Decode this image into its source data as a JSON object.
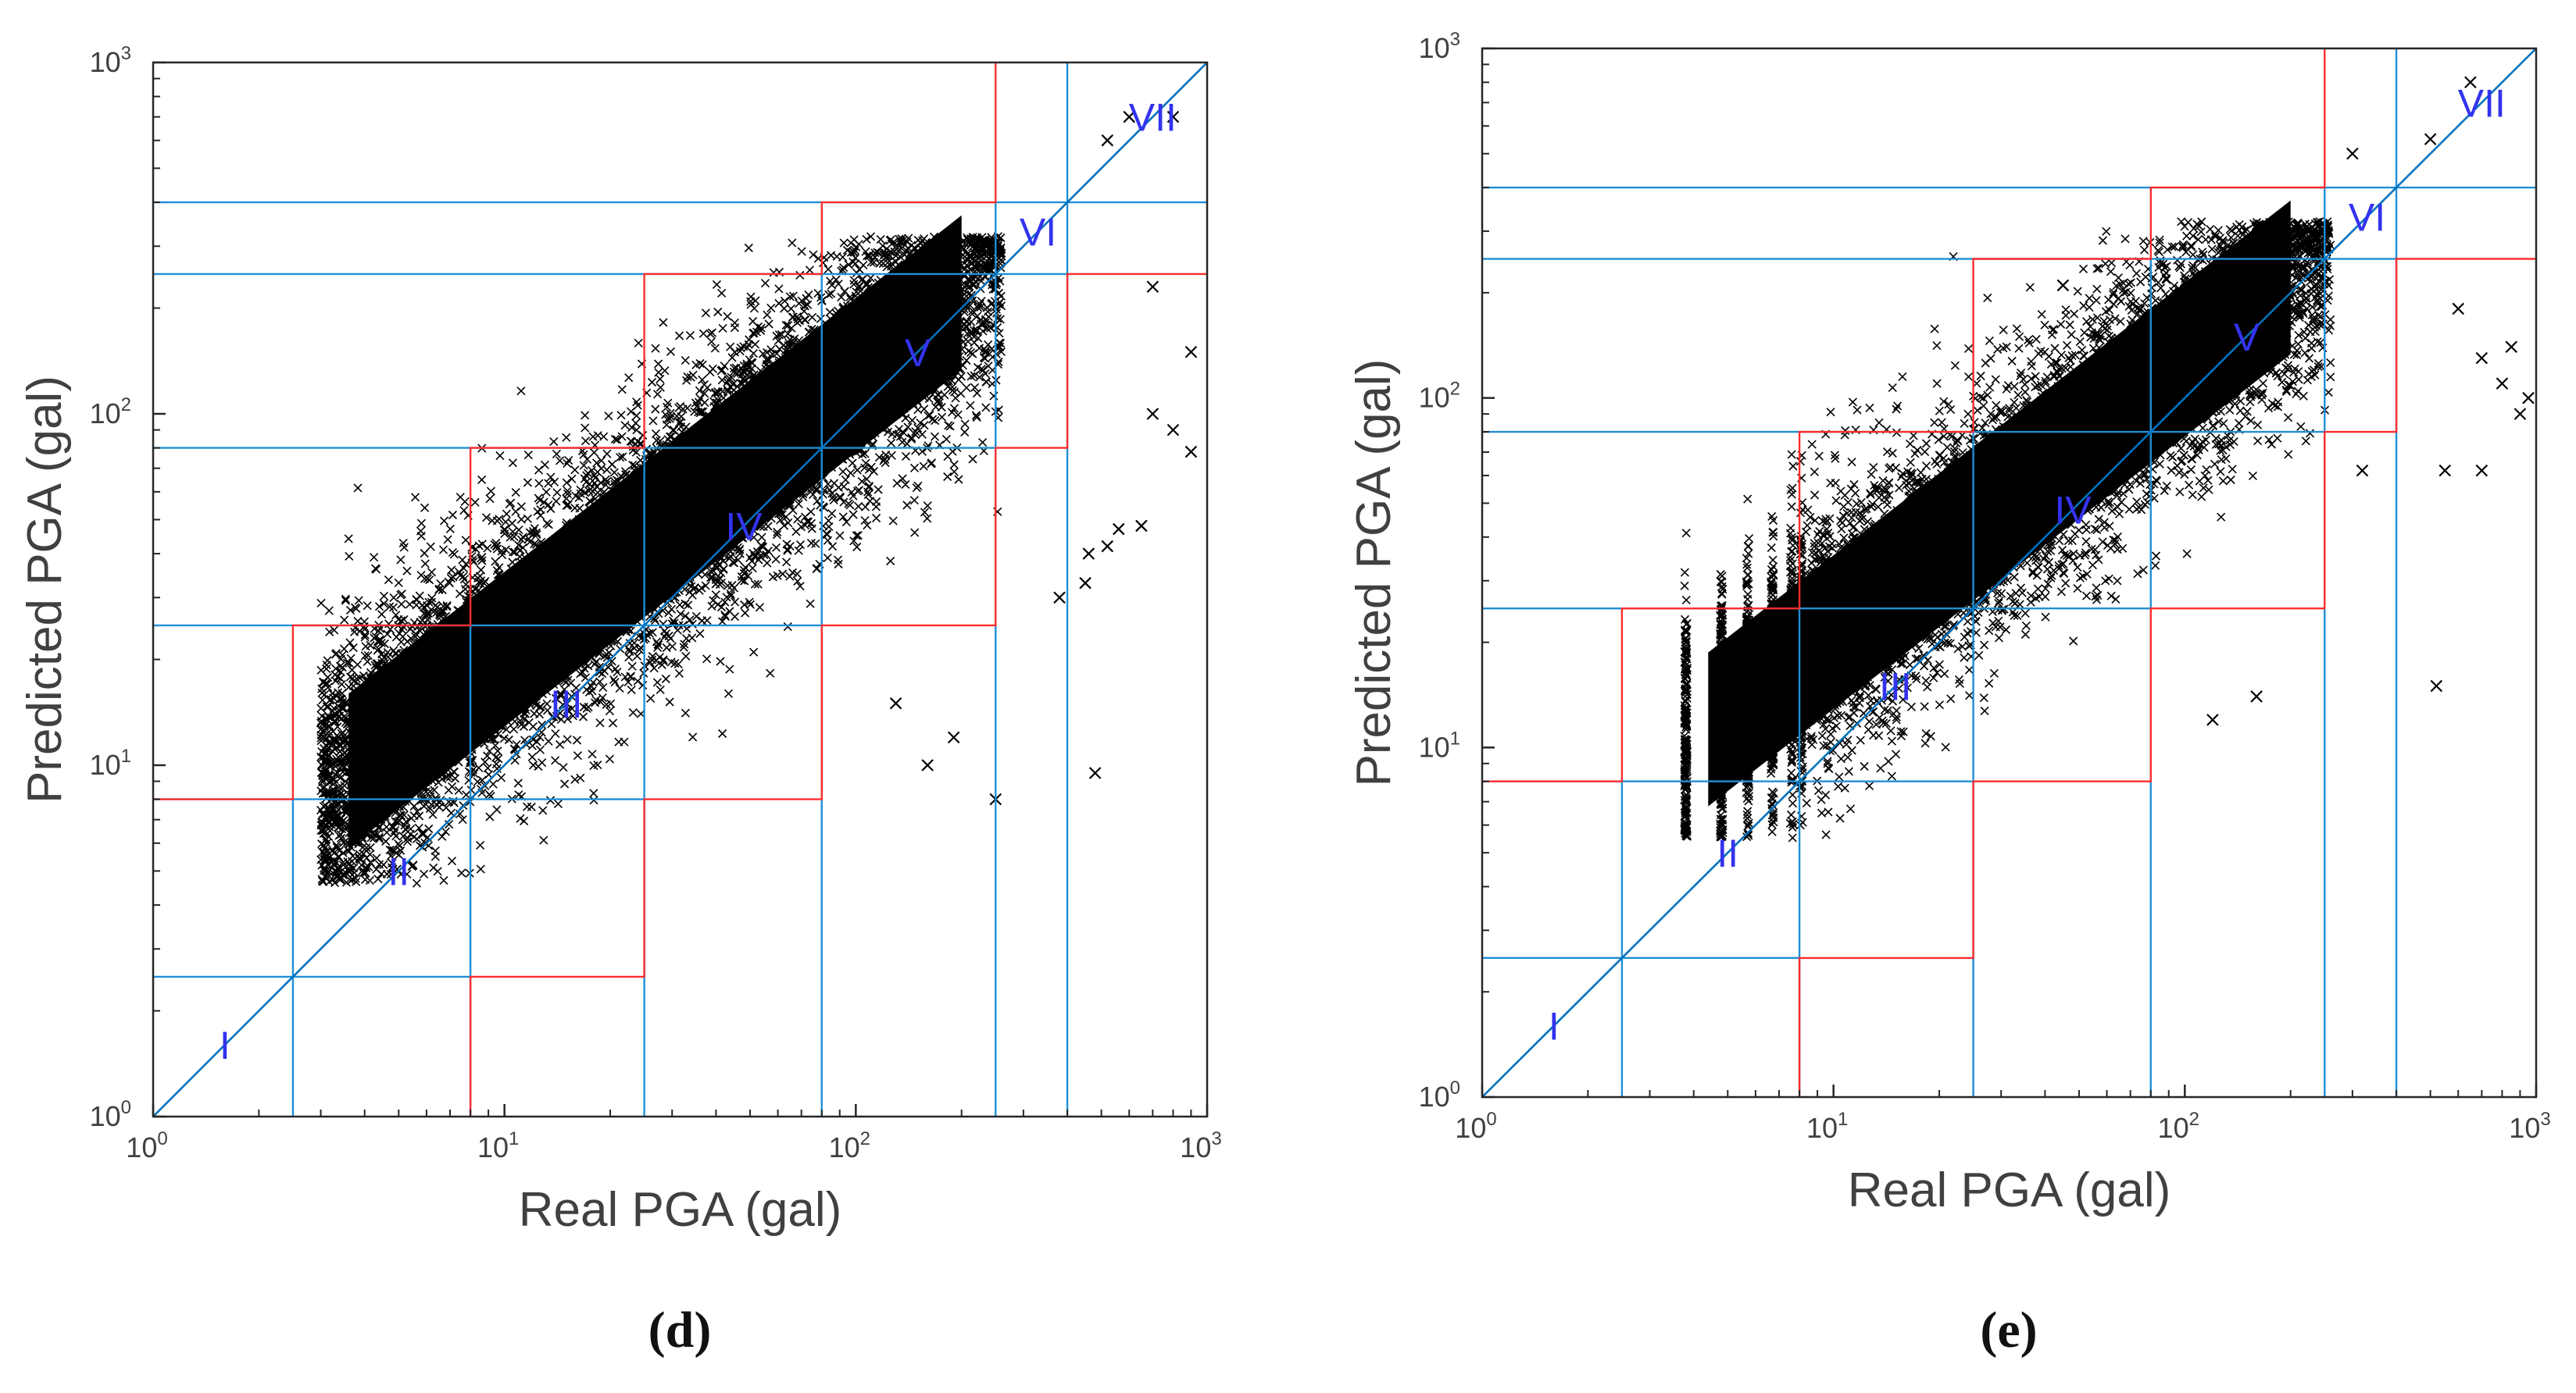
{
  "chart_data": [
    {
      "type": "scatter",
      "panel_label": "(d)",
      "xlabel": "Real PGA (gal)",
      "ylabel": "Predicted PGA (gal)",
      "xscale": "log",
      "yscale": "log",
      "xlim": [
        1,
        1000
      ],
      "ylim": [
        1,
        1000
      ],
      "x_tick_labels": [
        "10^0",
        "10^1",
        "10^2",
        "10^3"
      ],
      "y_tick_labels": [
        "10^0",
        "10^1",
        "10^2",
        "10^3"
      ],
      "marker": "x",
      "marker_color": "#000000",
      "intensity_boundaries_gal": [
        2.5,
        8,
        25,
        80,
        250,
        400,
        1000
      ],
      "tolerance_boundaries_gal": [
        [
          1,
          8
        ],
        [
          2.5,
          25
        ],
        [
          8,
          80
        ],
        [
          25,
          250
        ],
        [
          80,
          400
        ],
        [
          250,
          1000
        ],
        [
          400,
          1000
        ]
      ],
      "intensity_labels": [
        {
          "text": "I",
          "x": 1.6,
          "y": 1.6
        },
        {
          "text": "II",
          "x": 5,
          "y": 5
        },
        {
          "text": "III",
          "x": 15,
          "y": 15
        },
        {
          "text": "IV",
          "x": 48,
          "y": 48
        },
        {
          "text": "V",
          "x": 150,
          "y": 150
        },
        {
          "text": "VI",
          "x": 330,
          "y": 330
        },
        {
          "text": "VII",
          "x": 700,
          "y": 700
        }
      ],
      "dense_cloud_description": "dense black cloud of x markers from Real PGA ~3–250 gal, Predicted PGA ~4.5–300 gal",
      "outliers": [
        {
          "x": 480,
          "y": 9.5
        },
        {
          "x": 520,
          "y": 42
        },
        {
          "x": 560,
          "y": 47
        },
        {
          "x": 650,
          "y": 48
        },
        {
          "x": 700,
          "y": 100
        },
        {
          "x": 800,
          "y": 90
        },
        {
          "x": 900,
          "y": 78
        },
        {
          "x": 450,
          "y": 33
        },
        {
          "x": 460,
          "y": 40
        },
        {
          "x": 600,
          "y": 700
        },
        {
          "x": 900,
          "y": 150
        },
        {
          "x": 700,
          "y": 230
        },
        {
          "x": 520,
          "y": 600
        },
        {
          "x": 800,
          "y": 700
        },
        {
          "x": 380,
          "y": 30
        },
        {
          "x": 250,
          "y": 8
        },
        {
          "x": 160,
          "y": 10
        },
        {
          "x": 130,
          "y": 15
        },
        {
          "x": 190,
          "y": 12
        }
      ],
      "reference_line": "y = x"
    },
    {
      "type": "scatter",
      "panel_label": "(e)",
      "xlabel": "Real PGA (gal)",
      "ylabel": "Predicted PGA (gal)",
      "xscale": "log",
      "yscale": "log",
      "xlim": [
        1,
        1000
      ],
      "ylim": [
        1,
        1000
      ],
      "x_tick_labels": [
        "10^0",
        "10^1",
        "10^2",
        "10^3"
      ],
      "y_tick_labels": [
        "10^0",
        "10^1",
        "10^2",
        "10^3"
      ],
      "marker": "x",
      "marker_color": "#000000",
      "intensity_boundaries_gal": [
        2.5,
        8,
        25,
        80,
        250,
        400,
        1000
      ],
      "tolerance_boundaries_gal": [
        [
          1,
          8
        ],
        [
          2.5,
          25
        ],
        [
          8,
          80
        ],
        [
          25,
          250
        ],
        [
          80,
          400
        ],
        [
          250,
          1000
        ],
        [
          400,
          1000
        ]
      ],
      "intensity_labels": [
        {
          "text": "I",
          "x": 1.6,
          "y": 1.6
        },
        {
          "text": "II",
          "x": 5,
          "y": 5
        },
        {
          "text": "III",
          "x": 15,
          "y": 15
        },
        {
          "text": "IV",
          "x": 48,
          "y": 48
        },
        {
          "text": "V",
          "x": 150,
          "y": 150
        },
        {
          "text": "VI",
          "x": 330,
          "y": 330
        },
        {
          "text": "VII",
          "x": 700,
          "y": 700
        }
      ],
      "discrete_columns_gal": [
        3.8,
        4.8,
        5.7,
        6.7,
        7.6,
        8.1
      ],
      "dense_cloud_description": "dense black cloud of x markers from Real PGA ~3.8–250 gal, Predicted PGA ~5.5–300 gal; vertical striping at low real PGA",
      "outliers": [
        {
          "x": 520,
          "y": 15
        },
        {
          "x": 700,
          "y": 62
        },
        {
          "x": 900,
          "y": 90
        },
        {
          "x": 550,
          "y": 62
        },
        {
          "x": 800,
          "y": 110
        },
        {
          "x": 950,
          "y": 100
        },
        {
          "x": 700,
          "y": 130
        },
        {
          "x": 650,
          "y": 800
        },
        {
          "x": 500,
          "y": 550
        },
        {
          "x": 300,
          "y": 500
        },
        {
          "x": 600,
          "y": 180
        },
        {
          "x": 850,
          "y": 140
        },
        {
          "x": 160,
          "y": 14
        },
        {
          "x": 120,
          "y": 12
        },
        {
          "x": 320,
          "y": 62
        },
        {
          "x": 45,
          "y": 210
        }
      ],
      "reference_line": "y = x"
    }
  ],
  "colors": {
    "scatter": "#000000",
    "diagonal": "#0072BD",
    "intensity_grid": "#1f8fd6",
    "tolerance_box": "#ff2d2d",
    "zone_label": "#3333ee",
    "axis": "#262626",
    "axis_label": "#404040"
  }
}
